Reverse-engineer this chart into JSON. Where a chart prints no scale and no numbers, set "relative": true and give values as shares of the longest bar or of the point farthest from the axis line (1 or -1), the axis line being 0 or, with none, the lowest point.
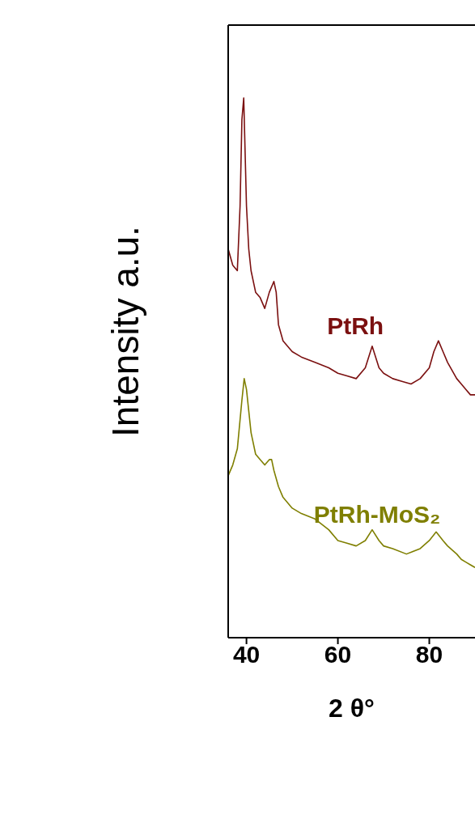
{
  "chart_data": {
    "type": "line",
    "xlabel": "2 θ°",
    "ylabel": "Intensity  a.u.",
    "relative": true,
    "xlim": [
      36,
      90
    ],
    "xticks": [
      40,
      60,
      80
    ],
    "marker": "none",
    "line_style": "solid",
    "series": [
      {
        "name": "PtRh",
        "color": "#7b1010",
        "x": [
          36,
          37,
          38,
          38.6,
          39,
          39.4,
          40,
          40.5,
          41,
          42,
          43,
          44,
          45,
          46,
          46.5,
          47,
          48,
          50,
          52,
          55,
          58,
          60,
          62,
          64,
          66,
          67.5,
          69,
          70,
          72,
          74,
          76,
          78,
          80,
          81,
          82,
          83,
          84,
          86,
          87,
          88,
          89,
          90
        ],
        "values": [
          0.72,
          0.69,
          0.68,
          0.8,
          0.96,
          1.0,
          0.8,
          0.72,
          0.68,
          0.64,
          0.63,
          0.61,
          0.64,
          0.66,
          0.64,
          0.58,
          0.55,
          0.53,
          0.52,
          0.51,
          0.5,
          0.49,
          0.485,
          0.48,
          0.5,
          0.54,
          0.5,
          0.49,
          0.48,
          0.475,
          0.47,
          0.48,
          0.5,
          0.53,
          0.55,
          0.53,
          0.51,
          0.48,
          0.47,
          0.46,
          0.45,
          0.45
        ]
      },
      {
        "name": "PtRh-MoS₂",
        "color": "#7f7f00",
        "x": [
          36,
          37,
          38,
          39,
          39.5,
          40,
          40.5,
          41,
          42,
          43,
          44,
          45,
          45.5,
          46,
          47,
          48,
          50,
          52,
          55,
          58,
          60,
          62,
          64,
          66,
          67.5,
          69,
          70,
          72,
          75,
          78,
          80,
          81.5,
          83,
          84,
          86,
          87,
          88,
          89,
          90
        ],
        "values": [
          0.3,
          0.32,
          0.35,
          0.44,
          0.48,
          0.46,
          0.42,
          0.38,
          0.34,
          0.33,
          0.32,
          0.33,
          0.33,
          0.31,
          0.28,
          0.26,
          0.24,
          0.23,
          0.22,
          0.2,
          0.18,
          0.175,
          0.17,
          0.18,
          0.2,
          0.18,
          0.17,
          0.165,
          0.155,
          0.165,
          0.18,
          0.196,
          0.18,
          0.17,
          0.155,
          0.145,
          0.14,
          0.135,
          0.13
        ]
      }
    ]
  }
}
